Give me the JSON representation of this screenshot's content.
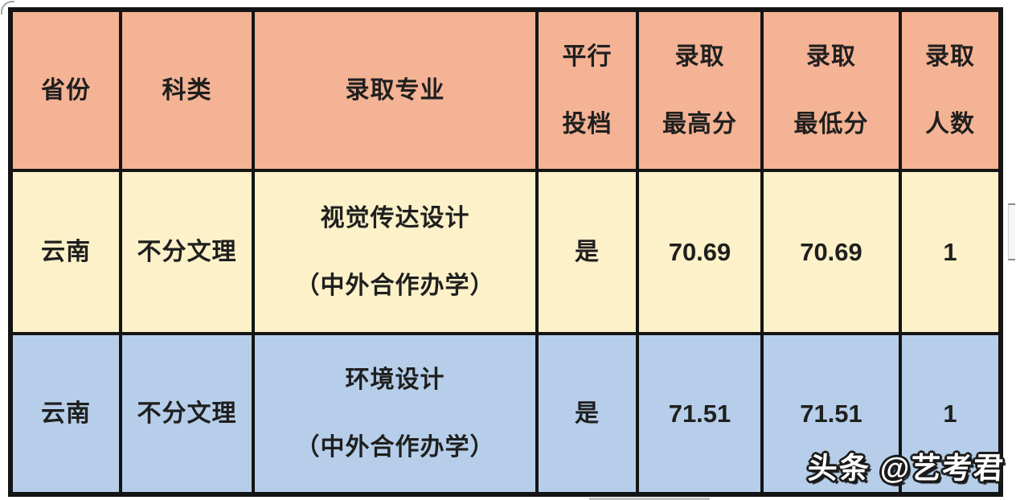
{
  "chart_data": {
    "type": "table",
    "title": "",
    "columns": [
      "省份",
      "科类",
      "录取专业",
      "平行投档",
      "录取最高分",
      "录取最低分",
      "录取人数"
    ],
    "rows": [
      [
        "云南",
        "不分文理",
        "视觉传达设计（中外合作办学）",
        "是",
        70.69,
        70.69,
        1
      ],
      [
        "云南",
        "不分文理",
        "环境设计（中外合作办学）",
        "是",
        71.51,
        71.51,
        1
      ]
    ]
  },
  "colors": {
    "header_bg": "#f4b394",
    "row1_bg": "#fcf1c8",
    "row2_bg": "#b6cee9",
    "grid_border": "#141414",
    "text": "#1f1f1f",
    "watermark_fill": "#ffffff",
    "watermark_outline": "#1a1a1a"
  },
  "table": {
    "headers": [
      {
        "lines": [
          "省份"
        ]
      },
      {
        "lines": [
          "科类"
        ]
      },
      {
        "lines": [
          "录取专业"
        ]
      },
      {
        "lines": [
          "平行",
          "投档"
        ]
      },
      {
        "lines": [
          "录取",
          "最高分"
        ]
      },
      {
        "lines": [
          "录取",
          "最低分"
        ]
      },
      {
        "lines": [
          "录取",
          "人数"
        ]
      }
    ],
    "rows": [
      {
        "province": "云南",
        "category": "不分文理",
        "major_lines": [
          "视觉传达设计",
          "（中外合作办学）"
        ],
        "parallel": "是",
        "max_score": "70.69",
        "min_score": "70.69",
        "count": "1"
      },
      {
        "province": "云南",
        "category": "不分文理",
        "major_lines": [
          "环境设计",
          "（中外合作办学）"
        ],
        "parallel": "是",
        "max_score": "71.51",
        "min_score": "71.51",
        "count": "1"
      }
    ]
  },
  "watermark": {
    "text": "头条 @艺考君"
  }
}
